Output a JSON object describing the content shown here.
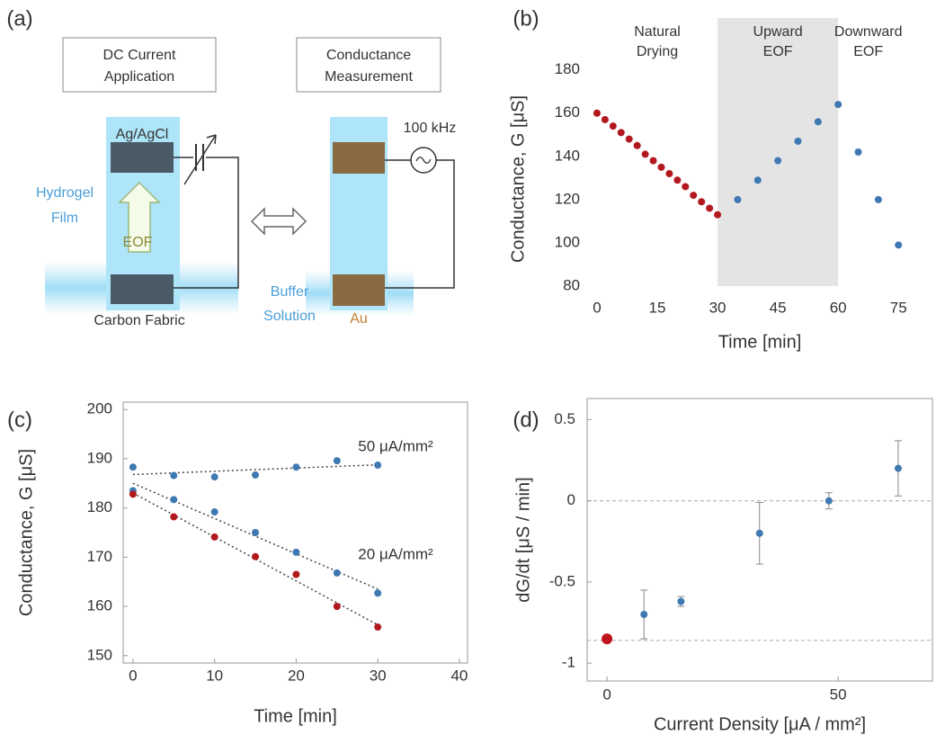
{
  "panel_labels": [
    "(a)",
    "(b)",
    "(c)",
    "(d)"
  ],
  "diagram": {
    "boxes": [
      [
        "DC Current",
        "Application"
      ],
      [
        "Conductance",
        "Measurement"
      ]
    ],
    "electrode_top": "Ag/AgCl",
    "source": "100 kHz",
    "hydrogel": [
      "Hydrogel",
      "Film"
    ],
    "flow": "EOF",
    "electrode_bottom": "Carbon Fabric",
    "buffer": [
      "Buffer",
      "Solution"
    ],
    "electrode_gold": "Au"
  },
  "chart_data": [
    {
      "type": "scatter",
      "x_label": "Time [min]",
      "y_label": "Conductance,  G [μS]",
      "xlim": [
        -2,
        83
      ],
      "ylim": [
        80,
        204
      ],
      "xticks": [
        0,
        15,
        30,
        45,
        60,
        75
      ],
      "yticks": [
        80,
        100,
        120,
        140,
        160,
        180
      ],
      "frame": false,
      "regions": [
        {
          "label": [
            "Natural",
            "Drying"
          ],
          "x": [
            0,
            30
          ]
        },
        {
          "label": [
            "Upward",
            "EOF"
          ],
          "x": [
            30,
            60
          ],
          "color": "#e4e4e4"
        },
        {
          "label": [
            "Downward",
            "EOF"
          ],
          "x": [
            60,
            75
          ]
        }
      ],
      "series": [
        {
          "color": "#b3181e",
          "x": [
            0,
            2,
            4,
            6,
            8,
            10,
            12,
            14,
            16,
            18,
            20,
            22,
            24,
            26,
            28,
            30
          ],
          "values": [
            160,
            157,
            154,
            151,
            148,
            145,
            141,
            138,
            135,
            132,
            129,
            126,
            122,
            119,
            116,
            113
          ]
        },
        {
          "color": "#3e79b2",
          "x": [
            35,
            40,
            45,
            50,
            55,
            60,
            65,
            70,
            75
          ],
          "values": [
            120,
            129,
            138,
            147,
            156,
            164,
            142,
            120,
            99
          ]
        }
      ]
    },
    {
      "type": "scatter",
      "x_label": "Time [min]",
      "y_label": "Conductance,  G [μS]",
      "xlim": [
        -1.2,
        41
      ],
      "ylim": [
        148.5,
        201.5
      ],
      "xticks": [
        0,
        10,
        20,
        30,
        40
      ],
      "yticks": [
        150,
        160,
        170,
        180,
        190,
        200
      ],
      "frame": true,
      "trendline": true,
      "annotations": [
        "50 μA/mm²",
        "20 μA/mm²"
      ],
      "series": [
        {
          "color": "#3e79b2",
          "x": [
            0,
            5,
            10,
            15,
            20,
            25,
            30
          ],
          "values": [
            188.3,
            186.6,
            186.3,
            186.7,
            188.3,
            189.6,
            188.7
          ]
        },
        {
          "color": "#3e79b2",
          "x": [
            0,
            5,
            10,
            15,
            20,
            25,
            30
          ],
          "values": [
            183.5,
            181.7,
            179.2,
            175,
            171,
            166.8,
            162.7
          ]
        },
        {
          "color": "#b3181e",
          "x": [
            0,
            5,
            10,
            15,
            20,
            25,
            30
          ],
          "values": [
            182.8,
            178.2,
            174.1,
            170.1,
            166.5,
            160,
            155.8
          ]
        }
      ]
    },
    {
      "type": "scatter",
      "x_label": "Current Density [μA / mm²]",
      "y_label": "dG/dt [μS / min]",
      "xlim": [
        -4.3,
        70.4
      ],
      "ylim": [
        -1.11,
        0.63
      ],
      "xticks": [
        0,
        50
      ],
      "yticks": [
        -1,
        -0.5,
        0,
        0.5
      ],
      "frame": true,
      "reference_lines": [
        0,
        -0.86
      ],
      "series": [
        {
          "color": "#c0141c",
          "x": [
            0
          ],
          "values": [
            -0.85
          ]
        },
        {
          "color": "#3e79b2",
          "x": [
            8,
            16,
            33,
            48,
            63
          ],
          "values": [
            -0.7,
            -0.62,
            -0.2,
            0,
            0.2
          ],
          "errors": [
            0.15,
            0.03,
            0.19,
            0.05,
            0.17
          ]
        }
      ]
    }
  ]
}
